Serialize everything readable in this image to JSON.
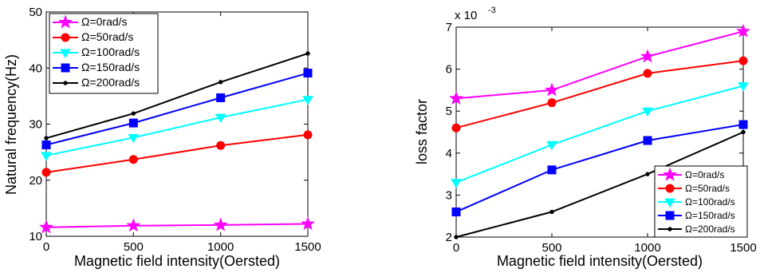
{
  "chart_data": [
    {
      "type": "line",
      "xlabel": "Magnetic field intensity(Oersted)",
      "ylabel": "Natural frequency(Hz)",
      "x": [
        0,
        500,
        1000,
        1500
      ],
      "xlim": [
        0,
        1500
      ],
      "ylim": [
        10,
        50
      ],
      "xticks": [
        0,
        500,
        1000,
        1500
      ],
      "yticks": [
        10,
        20,
        30,
        40,
        50
      ],
      "legend_position": "top-left",
      "series": [
        {
          "name": "Ω=0rad/s",
          "color": "#ff00ff",
          "marker": "star",
          "values": [
            11.6,
            11.9,
            12.0,
            12.2
          ]
        },
        {
          "name": "Ω=50rad/s",
          "color": "#ff0000",
          "marker": "circle",
          "values": [
            21.4,
            23.7,
            26.2,
            28.1
          ]
        },
        {
          "name": "Ω=100rad/s",
          "color": "#00ffff",
          "marker": "triangle-down",
          "values": [
            24.4,
            27.6,
            31.2,
            34.4
          ]
        },
        {
          "name": "Ω=150rad/s",
          "color": "#0000ff",
          "marker": "square",
          "values": [
            26.3,
            30.2,
            34.7,
            39.1
          ]
        },
        {
          "name": "Ω=200rad/s",
          "color": "#000000",
          "marker": "dot",
          "values": [
            27.5,
            31.9,
            37.5,
            42.6
          ]
        }
      ]
    },
    {
      "type": "line",
      "xlabel": "Magnetic field intensity(Oersted)",
      "ylabel": "loss factor",
      "y_exponent_label": "x 10",
      "y_exponent": "-3",
      "x": [
        0,
        500,
        1000,
        1500
      ],
      "xlim": [
        0,
        1500
      ],
      "ylim": [
        2,
        7
      ],
      "xticks": [
        0,
        500,
        1000,
        1500
      ],
      "yticks": [
        2,
        3,
        4,
        5,
        6,
        7
      ],
      "legend_position": "bottom-right",
      "series": [
        {
          "name": "Ω=0rad/s",
          "color": "#ff00ff",
          "marker": "star",
          "values": [
            5.3,
            5.5,
            6.3,
            6.9
          ]
        },
        {
          "name": "Ω=50rad/s",
          "color": "#ff0000",
          "marker": "circle",
          "values": [
            4.6,
            5.2,
            5.9,
            6.2
          ]
        },
        {
          "name": "Ω=100rad/s",
          "color": "#00ffff",
          "marker": "triangle-down",
          "values": [
            3.3,
            4.2,
            5.0,
            5.6
          ]
        },
        {
          "name": "Ω=150rad/s",
          "color": "#0000ff",
          "marker": "square",
          "values": [
            2.6,
            3.6,
            4.3,
            4.68
          ]
        },
        {
          "name": "Ω=200rad/s",
          "color": "#000000",
          "marker": "dot",
          "values": [
            2.0,
            2.6,
            3.5,
            4.5
          ]
        }
      ]
    }
  ]
}
